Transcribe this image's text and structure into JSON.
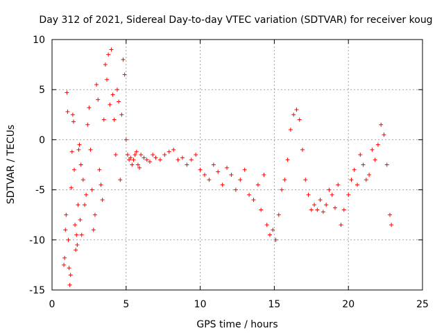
{
  "chart_data": {
    "type": "scatter",
    "title": "Day 312 of 2021, Sidereal Day-to-day VTEC variation (SDTVAR) for receiver koug",
    "xlabel": "GPS time / hours",
    "ylabel": "SDTVAR / TECUs",
    "xlim": [
      0,
      25
    ],
    "ylim": [
      -15,
      10
    ],
    "xticks": [
      0,
      5,
      10,
      15,
      20,
      25
    ],
    "yticks": [
      -15,
      -10,
      -5,
      0,
      5,
      10
    ],
    "grid": true,
    "marker": "+",
    "color": "#ff0000",
    "series": [
      {
        "name": "SDTVAR",
        "x": [
          0.8,
          0.85,
          0.9,
          0.95,
          1.0,
          1.05,
          1.1,
          1.15,
          1.2,
          1.25,
          1.3,
          1.35,
          1.4,
          1.45,
          1.5,
          1.55,
          1.6,
          1.65,
          1.7,
          1.75,
          1.8,
          1.85,
          1.9,
          1.95,
          2.0,
          2.1,
          2.2,
          2.3,
          2.4,
          2.5,
          2.6,
          2.7,
          2.8,
          2.9,
          3.0,
          3.1,
          3.2,
          3.3,
          3.4,
          3.5,
          3.6,
          3.7,
          3.8,
          3.9,
          4.0,
          4.1,
          4.2,
          4.3,
          4.4,
          4.5,
          4.6,
          4.7,
          4.8,
          4.9,
          5.0,
          5.1,
          5.2,
          5.3,
          5.4,
          5.5,
          5.6,
          5.7,
          5.8,
          5.9,
          6.0,
          6.2,
          6.4,
          6.6,
          6.8,
          7.0,
          7.3,
          7.6,
          7.9,
          8.2,
          8.5,
          8.8,
          9.1,
          9.4,
          9.7,
          10.0,
          10.3,
          10.6,
          10.9,
          11.2,
          11.5,
          11.8,
          12.1,
          12.4,
          12.7,
          13.0,
          13.3,
          13.6,
          13.9,
          14.1,
          14.3,
          14.5,
          14.7,
          14.9,
          15.1,
          15.3,
          15.5,
          15.7,
          15.9,
          16.1,
          16.3,
          16.5,
          16.7,
          16.9,
          17.1,
          17.3,
          17.5,
          17.7,
          17.9,
          18.1,
          18.3,
          18.5,
          18.7,
          18.9,
          19.1,
          19.3,
          19.5,
          19.7,
          20.0,
          20.2,
          20.4,
          20.6,
          20.8,
          21.0,
          21.2,
          21.4,
          21.6,
          21.8,
          22.0,
          22.2,
          22.4,
          22.6,
          22.8,
          22.9
        ],
        "y": [
          -12.5,
          -11.8,
          -9.0,
          -7.5,
          4.7,
          2.8,
          -10.0,
          -12.8,
          -14.5,
          -13.5,
          -4.8,
          -1.2,
          2.5,
          1.8,
          -3.0,
          -8.5,
          -11.0,
          -9.5,
          -10.5,
          -6.5,
          -1.0,
          -0.5,
          -8.0,
          -2.5,
          -9.5,
          -4.0,
          -6.5,
          -5.5,
          1.5,
          3.2,
          -1.0,
          -5.0,
          -9.0,
          -7.5,
          5.5,
          4.0,
          -3.0,
          -4.5,
          -6.0,
          2.0,
          7.5,
          6.0,
          8.5,
          3.5,
          9.0,
          4.5,
          2.0,
          -1.5,
          5.0,
          3.8,
          -4.0,
          2.5,
          8.0,
          6.5,
          0.0,
          -1.5,
          -2.0,
          -1.8,
          -2.5,
          -2.0,
          -1.5,
          -1.2,
          -2.5,
          -2.8,
          -1.5,
          -1.8,
          -2.0,
          -2.2,
          -1.5,
          -1.8,
          -2.0,
          -1.5,
          -1.2,
          -1.0,
          -2.0,
          -1.8,
          -2.5,
          -2.0,
          -1.5,
          -3.0,
          -3.5,
          -4.0,
          -2.5,
          -3.2,
          -4.5,
          -2.8,
          -3.5,
          -5.0,
          -4.0,
          -3.0,
          -5.5,
          -6.0,
          -4.5,
          -7.0,
          -3.5,
          -8.5,
          -9.5,
          -9.0,
          -10.0,
          -7.5,
          -5.0,
          -4.0,
          -2.0,
          1.0,
          2.5,
          3.0,
          2.0,
          -1.0,
          -4.0,
          -5.5,
          -7.0,
          -6.5,
          -7.0,
          -6.0,
          -7.2,
          -6.5,
          -5.0,
          -5.5,
          -6.8,
          -4.5,
          -8.5,
          -7.0,
          -5.5,
          -4.0,
          -3.0,
          -4.5,
          -1.5,
          -2.5,
          -4.0,
          -3.5,
          -1.0,
          -2.0,
          -0.5,
          1.5,
          0.5,
          -2.5,
          -7.5,
          -8.5
        ]
      }
    ]
  }
}
